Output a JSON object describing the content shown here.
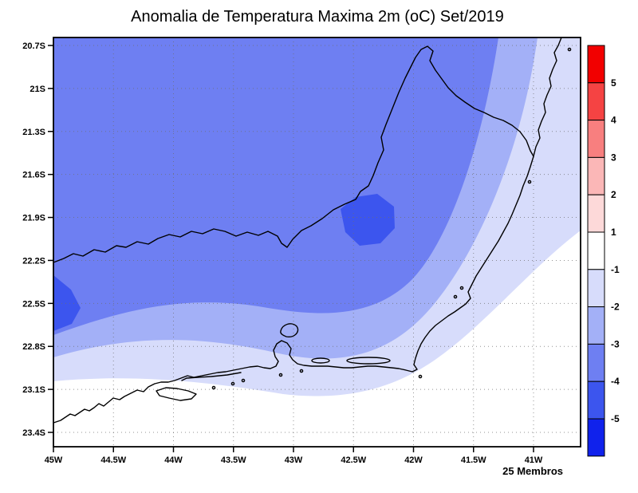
{
  "title": "Anomalia de Temperatura Maxima 2m (oC) Set/2019",
  "footer": {
    "members_label": "25 Membros"
  },
  "axes": {
    "lat_ticks": [
      "20.7S",
      "21S",
      "21.3S",
      "21.6S",
      "21.9S",
      "22.2S",
      "22.5S",
      "22.8S",
      "23.1S",
      "23.4S"
    ],
    "lon_ticks": [
      "45W",
      "44.5W",
      "44W",
      "43.5W",
      "43W",
      "42.5W",
      "42W",
      "41.5W",
      "41W"
    ]
  },
  "colorbar": {
    "boundary_labels": [
      "5",
      "4",
      "3",
      "2",
      "1",
      "-1",
      "-2",
      "-3",
      "-4",
      "-5"
    ],
    "segments": [
      "#f20000",
      "#f54343",
      "#f87f7f",
      "#fbb7b7",
      "#fdd9d9",
      "#ffffff",
      "#d7dcfb",
      "#a3b0f7",
      "#6e7ff2",
      "#3c55ee",
      "#1022ec"
    ]
  },
  "chart_data": {
    "type": "heatmap",
    "title": "Anomalia de Temperatura Maxima 2m (oC) Set/2019",
    "xlabel": "",
    "ylabel": "",
    "x_ticks": [
      "45W",
      "44.5W",
      "44W",
      "43.5W",
      "43W",
      "42.5W",
      "42W",
      "41.5W",
      "41W"
    ],
    "y_ticks": [
      "20.7S",
      "21S",
      "21.3S",
      "21.6S",
      "21.9S",
      "22.2S",
      "22.5S",
      "22.8S",
      "23.1S",
      "23.4S"
    ],
    "x_range_deg_west": [
      45.0,
      40.6
    ],
    "y_range_deg_south": [
      20.65,
      23.5
    ],
    "grid": "dotted",
    "legend_position": "right-colorbar",
    "units": "oC",
    "contour_levels": [
      -5,
      -4,
      -3,
      -2,
      -1,
      1,
      2,
      3,
      4,
      5
    ],
    "ensemble_members": "25 Membros",
    "regions": [
      {
        "area": "north and center of domain (most of map)",
        "value": "-4 to -3"
      },
      {
        "area": "small pocket near 42.4W, 21.95S",
        "value": "-5 to -4"
      },
      {
        "area": "pocket at west edge near 45W, 22.4S",
        "value": "-5 to -4"
      },
      {
        "area": "band along ~22.5S-22.7S sweeping northeast to the top-right corner",
        "value": "-3 to -2"
      },
      {
        "area": "band just inland of the south coast and along the east edge",
        "value": "-2 to -1"
      },
      {
        "area": "southern coastal strip and southeast corner",
        "value": "-1 to 1"
      }
    ]
  }
}
